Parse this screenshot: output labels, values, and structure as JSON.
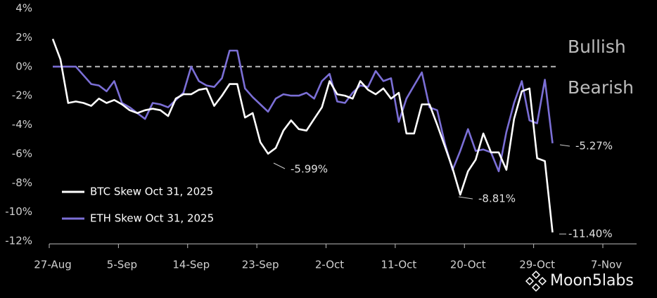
{
  "chart_data": {
    "type": "line",
    "categories": [
      "27-Aug",
      "28-Aug",
      "29-Aug",
      "30-Aug",
      "31-Aug",
      "1-Sep",
      "2-Sep",
      "3-Sep",
      "4-Sep",
      "5-Sep",
      "6-Sep",
      "7-Sep",
      "8-Sep",
      "9-Sep",
      "10-Sep",
      "11-Sep",
      "12-Sep",
      "13-Sep",
      "14-Sep",
      "15-Sep",
      "16-Sep",
      "17-Sep",
      "18-Sep",
      "19-Sep",
      "20-Sep",
      "21-Sep",
      "22-Sep",
      "23-Sep",
      "24-Sep",
      "25-Sep",
      "26-Sep",
      "27-Sep",
      "28-Sep",
      "29-Sep",
      "30-Sep",
      "1-Oct",
      "2-Oct",
      "3-Oct",
      "4-Oct",
      "5-Oct",
      "6-Oct",
      "7-Oct",
      "8-Oct",
      "9-Oct",
      "10-Oct",
      "11-Oct",
      "12-Oct",
      "13-Oct",
      "14-Oct",
      "15-Oct",
      "16-Oct",
      "17-Oct",
      "18-Oct",
      "19-Oct",
      "20-Oct",
      "21-Oct",
      "22-Oct",
      "23-Oct",
      "24-Oct",
      "25-Oct",
      "26-Oct",
      "27-Oct",
      "28-Oct",
      "29-Oct",
      "30-Oct",
      "31-Oct",
      "1-Nov",
      "2-Nov",
      "3-Nov",
      "4-Nov",
      "5-Nov",
      "6-Nov",
      "7-Nov"
    ],
    "series": [
      {
        "name": "BTC Skew Oct 31, 2025",
        "color": "#ffffff",
        "values": [
          1.9,
          0.5,
          -2.5,
          -2.4,
          -2.5,
          -2.7,
          -2.2,
          -2.5,
          -2.3,
          -2.6,
          -3.0,
          -3.2,
          -3.0,
          -2.9,
          -3.0,
          -3.4,
          -2.2,
          -1.9,
          -1.9,
          -1.6,
          -1.5,
          -2.7,
          -2.0,
          -1.2,
          -1.2,
          -3.5,
          -3.2,
          -5.2,
          -5.99,
          -5.6,
          -4.4,
          -3.7,
          -4.3,
          -4.4,
          -3.6,
          -2.8,
          -1.0,
          -1.9,
          -2.0,
          -2.2,
          -1.0,
          -1.6,
          -1.9,
          -1.5,
          -2.2,
          -1.8,
          -4.6,
          -4.6,
          -2.6,
          -2.6,
          -4.0,
          -5.5,
          -7.0,
          -8.81,
          -7.2,
          -6.4,
          -4.6,
          -5.9,
          -5.9,
          -7.1,
          -3.6,
          -1.7,
          -1.5,
          -6.3,
          -6.5,
          -11.4,
          null,
          null,
          null,
          null,
          null,
          null,
          null
        ]
      },
      {
        "name": "ETH Skew Oct 31, 2025",
        "color": "#7b6fd6",
        "values": [
          0,
          0,
          0,
          0,
          -0.6,
          -1.2,
          -1.3,
          -1.7,
          -1.0,
          -2.5,
          -2.8,
          -3.2,
          -3.6,
          -2.5,
          -2.6,
          -2.8,
          -2.3,
          -1.8,
          0,
          -1.0,
          -1.3,
          -1.4,
          -0.8,
          1.1,
          1.1,
          -1.5,
          -2.1,
          -2.6,
          -3.1,
          -2.2,
          -1.9,
          -2.0,
          -2.0,
          -1.8,
          -2.2,
          -1.0,
          -0.5,
          -2.4,
          -2.5,
          -1.8,
          -1.3,
          -1.4,
          -0.3,
          -1.0,
          -0.8,
          -3.8,
          -2.2,
          -1.3,
          -0.4,
          -2.8,
          -3.0,
          -5.3,
          -7.1,
          -5.8,
          -4.3,
          -5.8,
          -5.7,
          -5.9,
          -7.2,
          -4.5,
          -2.5,
          -1.0,
          -3.7,
          -3.9,
          -0.9,
          -5.27,
          null,
          null,
          null,
          null,
          null,
          null,
          null
        ]
      }
    ],
    "xticks": [
      "27-Aug",
      "5-Sep",
      "14-Sep",
      "23-Sep",
      "2-Oct",
      "11-Oct",
      "20-Oct",
      "29-Oct",
      "7-Nov"
    ],
    "ylim": [
      -12,
      4
    ],
    "yticks": [
      {
        "value": -12,
        "label": "-12%"
      },
      {
        "value": -10,
        "label": "-10%"
      },
      {
        "value": -8,
        "label": "-8%"
      },
      {
        "value": -6,
        "label": "-6%"
      },
      {
        "value": -4,
        "label": "-4%"
      },
      {
        "value": -2,
        "label": "-2%"
      },
      {
        "value": 0,
        "label": "0%"
      },
      {
        "value": 2,
        "label": "2%"
      },
      {
        "value": 4,
        "label": "4%"
      }
    ],
    "reference_line": 0,
    "zone_labels": [
      "Bullish",
      "Bearish"
    ],
    "annotations": [
      "-5.99%",
      "-8.81%",
      "-11.40%",
      "-5.27%"
    ],
    "legend": "lower-left",
    "watermark": "Moon5labs"
  }
}
